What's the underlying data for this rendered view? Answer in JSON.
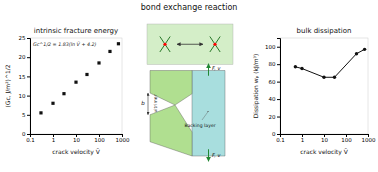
{
  "chart_data": [
    {
      "type": "scatter",
      "title": "intrinsic fracture energy",
      "x_label": "crack velocity  V̄",
      "y_label": "(Gc, J/m²)^1/2",
      "annotations": [
        "Gc^1/2 = 1.83(ln V̄ + 4.2)"
      ],
      "log": "x",
      "xlim": [
        0.1,
        1000
      ],
      "ylim": [
        0,
        25
      ],
      "xticks": [
        0.1,
        1,
        10,
        100,
        1000
      ],
      "yticks": [
        0,
        5,
        10,
        15,
        20,
        25
      ],
      "x": [
        0.3,
        1.0,
        3.0,
        10.0,
        30.0,
        100.0,
        300.0,
        700.0
      ],
      "values": [
        5.5,
        8.0,
        10.5,
        13.5,
        15.5,
        18.5,
        21.5,
        23.5
      ],
      "color": "#111111",
      "marker": "square"
    },
    {
      "type": "diagram",
      "title": "bond exchange reaction",
      "annotations": [
        "F, v",
        "F, v",
        "b",
        "vitrimer",
        "Backing layer"
      ]
    },
    {
      "type": "line",
      "title": "bulk dissipation",
      "x_label": "crack velocity  V̄",
      "y_label": "Dissipation wₚ (kJ/m³)",
      "log": "x",
      "xlim": [
        0.1,
        1000
      ],
      "ylim": [
        0,
        110
      ],
      "xticks": [
        0.1,
        1,
        10,
        100,
        1000
      ],
      "yticks": [
        0,
        20,
        40,
        60,
        80,
        100
      ],
      "x": [
        0.5,
        1.0,
        10.0,
        30.0,
        300.0,
        700.0
      ],
      "values": [
        77,
        75,
        65,
        65,
        92,
        97
      ],
      "color": "#111111",
      "marker": "circle",
      "line_style": "solid"
    }
  ]
}
